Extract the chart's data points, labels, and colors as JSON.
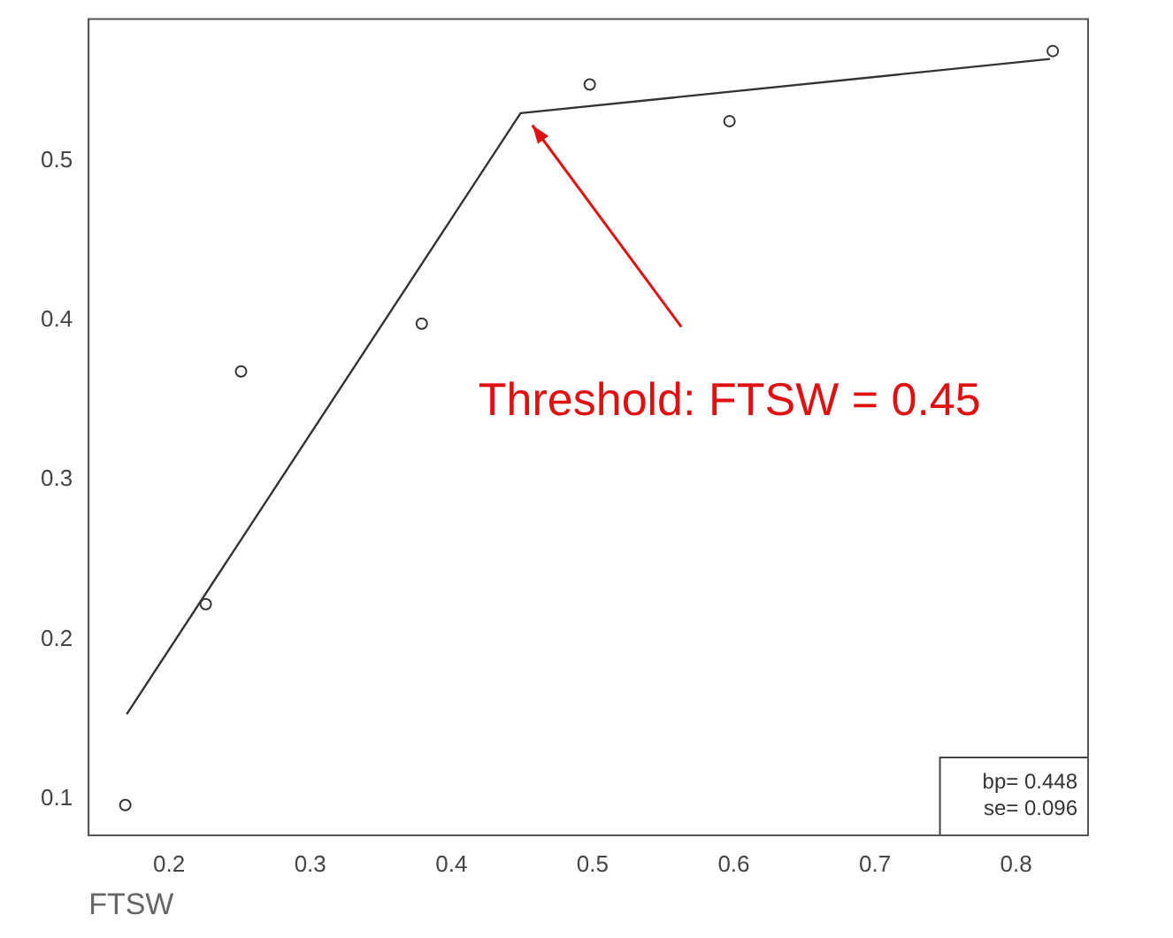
{
  "chart_data": {
    "type": "scatter",
    "xlabel": "FTSW",
    "series": [
      {
        "type": "scatter",
        "color": "#333333",
        "x": [
          0.169,
          0.226,
          0.251,
          0.379,
          0.498,
          0.597,
          0.826
        ],
        "values": [
          0.096,
          0.222,
          0.368,
          0.398,
          0.548,
          0.525,
          0.569
        ],
        "marker": "circle"
      },
      {
        "type": "line",
        "color": "#333333",
        "x": [
          0.17,
          0.449,
          0.824
        ],
        "values": [
          0.153,
          0.53,
          0.564
        ],
        "marker": "none",
        "line_style": "solid"
      }
    ],
    "xlim": [
      0.143,
      0.851
    ],
    "ylim": [
      0.077,
      0.589
    ],
    "xticks": [
      0.2,
      0.3,
      0.4,
      0.5,
      0.6,
      0.7,
      0.8
    ],
    "yticks": [
      0.1,
      0.2,
      0.3,
      0.4,
      0.5
    ],
    "annotations": [
      "Threshold: FTSW = 0.45",
      "bp= 0.448",
      "se= 0.096"
    ],
    "grid": false,
    "legend": false
  }
}
